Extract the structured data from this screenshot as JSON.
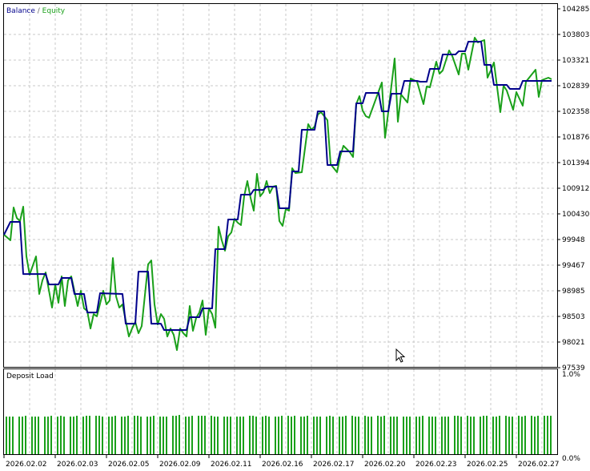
{
  "chart_data": [
    {
      "type": "line",
      "panel": "balance-equity",
      "legend": [
        {
          "name": "Balance",
          "color": "#00008b"
        },
        {
          "name": "Equity",
          "color": "#1aa01a"
        }
      ],
      "legend_separator": " / ",
      "legend_placement": "top-left",
      "grid": true,
      "ylim": [
        97539,
        104285
      ],
      "y_ticks": [
        "104285",
        "103803",
        "103321",
        "102839",
        "102358",
        "101876",
        "101394",
        "100912",
        "100430",
        "99948",
        "99467",
        "98985",
        "98503",
        "98021",
        "97539"
      ],
      "x_ticks": [
        "2026.02.02",
        "2026.02.03",
        "2026.02.05",
        "2026.02.09",
        "2026.02.11",
        "2026.02.16",
        "2026.02.17",
        "2026.02.20",
        "2026.02.23",
        "2026.02.25",
        "2026.02.27"
      ],
      "x_range_index": [
        0,
        171
      ],
      "series": [
        {
          "name": "Balance",
          "color": "#00008b",
          "points": [
            [
              0,
              100038
            ],
            [
              2,
              100279
            ],
            [
              5,
              100279
            ],
            [
              6,
              99300
            ],
            [
              13,
              99300
            ],
            [
              14,
              99104
            ],
            [
              17,
              99104
            ],
            [
              18,
              99225
            ],
            [
              21,
              99225
            ],
            [
              22,
              98924
            ],
            [
              25,
              98924
            ],
            [
              26,
              98577
            ],
            [
              29,
              98577
            ],
            [
              30,
              98939
            ],
            [
              37,
              98924
            ],
            [
              38,
              98366
            ],
            [
              41,
              98366
            ],
            [
              42,
              99345
            ],
            [
              45,
              99345
            ],
            [
              46,
              98366
            ],
            [
              49,
              98366
            ],
            [
              50,
              98246
            ],
            [
              57,
              98246
            ],
            [
              58,
              98487
            ],
            [
              61,
              98487
            ],
            [
              62,
              98653
            ],
            [
              65,
              98653
            ],
            [
              66,
              99767
            ],
            [
              69,
              99767
            ],
            [
              70,
              100324
            ],
            [
              73,
              100324
            ],
            [
              74,
              100791
            ],
            [
              77,
              100791
            ],
            [
              78,
              100881
            ],
            [
              81,
              100881
            ],
            [
              82,
              100942
            ],
            [
              85,
              100942
            ],
            [
              86,
              100535
            ],
            [
              89,
              100535
            ],
            [
              90,
              101228
            ],
            [
              92,
              101228
            ],
            [
              93,
              102011
            ],
            [
              97,
              102011
            ],
            [
              98,
              102357
            ],
            [
              100,
              102357
            ],
            [
              101,
              101348
            ],
            [
              104,
              101348
            ],
            [
              105,
              101604
            ],
            [
              109,
              101604
            ],
            [
              110,
              102508
            ],
            [
              112,
              102508
            ],
            [
              113,
              102704
            ],
            [
              117,
              102704
            ],
            [
              118,
              102357
            ],
            [
              120,
              102357
            ],
            [
              121,
              102689
            ],
            [
              124,
              102689
            ],
            [
              125,
              102930
            ],
            [
              129,
              102930
            ],
            [
              130,
              102915
            ],
            [
              132,
              102915
            ],
            [
              133,
              103155
            ],
            [
              136,
              103155
            ],
            [
              137,
              103427
            ],
            [
              141,
              103427
            ],
            [
              142,
              103487
            ],
            [
              144,
              103487
            ],
            [
              145,
              103668
            ],
            [
              149,
              103668
            ],
            [
              150,
              103231
            ],
            [
              152,
              103231
            ],
            [
              153,
              102854
            ],
            [
              157,
              102854
            ],
            [
              158,
              102779
            ],
            [
              161,
              102779
            ],
            [
              162,
              102930
            ],
            [
              171,
              102930
            ]
          ]
        },
        {
          "name": "Equity",
          "color": "#1aa01a",
          "points": [
            [
              0,
              100038
            ],
            [
              2,
              99933
            ],
            [
              3,
              100550
            ],
            [
              4,
              100354
            ],
            [
              5,
              100294
            ],
            [
              6,
              100565
            ],
            [
              7,
              99631
            ],
            [
              8,
              99285
            ],
            [
              10,
              99631
            ],
            [
              11,
              98924
            ],
            [
              12,
              99180
            ],
            [
              13,
              99330
            ],
            [
              15,
              98668
            ],
            [
              16,
              99104
            ],
            [
              17,
              98758
            ],
            [
              18,
              99255
            ],
            [
              19,
              98698
            ],
            [
              20,
              99180
            ],
            [
              21,
              99255
            ],
            [
              23,
              98698
            ],
            [
              24,
              98984
            ],
            [
              25,
              98653
            ],
            [
              26,
              98607
            ],
            [
              27,
              98276
            ],
            [
              28,
              98547
            ],
            [
              29,
              98502
            ],
            [
              31,
              98984
            ],
            [
              32,
              98728
            ],
            [
              33,
              98803
            ],
            [
              34,
              99601
            ],
            [
              35,
              98878
            ],
            [
              36,
              98668
            ],
            [
              37,
              98728
            ],
            [
              39,
              98125
            ],
            [
              40,
              98276
            ],
            [
              41,
              98397
            ],
            [
              42,
              98186
            ],
            [
              43,
              98321
            ],
            [
              45,
              99481
            ],
            [
              46,
              99556
            ],
            [
              47,
              98728
            ],
            [
              48,
              98351
            ],
            [
              49,
              98547
            ],
            [
              50,
              98457
            ],
            [
              51,
              98125
            ],
            [
              52,
              98276
            ],
            [
              53,
              98156
            ],
            [
              54,
              97869
            ],
            [
              55,
              98276
            ],
            [
              56,
              98186
            ],
            [
              57,
              98125
            ],
            [
              58,
              98698
            ],
            [
              59,
              98231
            ],
            [
              60,
              98472
            ],
            [
              61,
              98577
            ],
            [
              62,
              98803
            ],
            [
              63,
              98156
            ],
            [
              64,
              98653
            ],
            [
              65,
              98547
            ],
            [
              66,
              98291
            ],
            [
              67,
              100189
            ],
            [
              68,
              99933
            ],
            [
              69,
              99737
            ],
            [
              70,
              100008
            ],
            [
              71,
              100083
            ],
            [
              72,
              100339
            ],
            [
              73,
              100264
            ],
            [
              74,
              100219
            ],
            [
              75,
              100761
            ],
            [
              76,
              101047
            ],
            [
              77,
              100731
            ],
            [
              78,
              100490
            ],
            [
              79,
              101183
            ],
            [
              80,
              100761
            ],
            [
              81,
              100836
            ],
            [
              82,
              101047
            ],
            [
              83,
              100821
            ],
            [
              84,
              100942
            ],
            [
              85,
              100957
            ],
            [
              86,
              100294
            ],
            [
              87,
              100204
            ],
            [
              88,
              100520
            ],
            [
              89,
              100490
            ],
            [
              90,
              101288
            ],
            [
              91,
              101198
            ],
            [
              93,
              101213
            ],
            [
              95,
              102116
            ],
            [
              96,
              102011
            ],
            [
              97,
              102071
            ],
            [
              98,
              102297
            ],
            [
              99,
              102342
            ],
            [
              101,
              102192
            ],
            [
              102,
              101363
            ],
            [
              103,
              101288
            ],
            [
              104,
              101213
            ],
            [
              105,
              101514
            ],
            [
              106,
              101710
            ],
            [
              107,
              101650
            ],
            [
              108,
              101589
            ],
            [
              109,
              101499
            ],
            [
              110,
              102493
            ],
            [
              111,
              102643
            ],
            [
              112,
              102372
            ],
            [
              113,
              102267
            ],
            [
              114,
              102237
            ],
            [
              118,
              102899
            ],
            [
              119,
              101860
            ],
            [
              120,
              102342
            ],
            [
              122,
              103351
            ],
            [
              123,
              102162
            ],
            [
              124,
              102674
            ],
            [
              126,
              102523
            ],
            [
              127,
              102975
            ],
            [
              129,
              102915
            ],
            [
              131,
              102493
            ],
            [
              132,
              102824
            ],
            [
              133,
              102809
            ],
            [
              135,
              103291
            ],
            [
              136,
              103065
            ],
            [
              137,
              103125
            ],
            [
              139,
              103502
            ],
            [
              140,
              103396
            ],
            [
              142,
              103050
            ],
            [
              143,
              103442
            ],
            [
              144,
              103442
            ],
            [
              145,
              103140
            ],
            [
              147,
              103743
            ],
            [
              148,
              103652
            ],
            [
              150,
              103697
            ],
            [
              151,
              102990
            ],
            [
              152,
              103125
            ],
            [
              153,
              103276
            ],
            [
              155,
              102342
            ],
            [
              156,
              102839
            ],
            [
              157,
              102749
            ],
            [
              159,
              102387
            ],
            [
              160,
              102719
            ],
            [
              162,
              102463
            ],
            [
              163,
              102915
            ],
            [
              166,
              103140
            ],
            [
              167,
              102628
            ],
            [
              168,
              102945
            ],
            [
              170,
              102990
            ],
            [
              171,
              102960
            ]
          ]
        }
      ]
    },
    {
      "type": "bar",
      "panel": "deposit-load",
      "title": "Deposit Load",
      "color": "#1aa01a",
      "ylim": [
        0,
        1.0
      ],
      "y_ticks": [
        "1.0%",
        "0.0%"
      ],
      "unit": "%",
      "values": [
        0.46,
        0.46,
        0.46,
        0.46,
        0.46,
        0.47,
        0.46,
        0.46,
        0.46,
        0.46,
        0.46,
        0.47,
        0.46,
        0.47,
        0.46,
        0.46,
        0.46,
        0.47,
        0.46,
        0.47,
        0.47,
        0.47,
        0.47,
        0.46,
        0.46,
        0.46,
        0.47,
        0.46,
        0.46,
        0.47,
        0.47,
        0.47,
        0.46,
        0.46,
        0.46,
        0.47,
        0.46,
        0.46,
        0.46,
        0.47,
        0.47,
        0.48,
        0.46,
        0.46,
        0.47,
        0.47,
        0.47,
        0.47,
        0.47,
        0.46,
        0.46,
        0.46,
        0.46,
        0.46,
        0.46,
        0.46,
        0.46,
        0.47,
        0.47,
        0.46,
        0.46,
        0.47,
        0.46,
        0.46,
        0.46,
        0.47,
        0.47,
        0.46,
        0.47,
        0.46,
        0.46,
        0.47,
        0.46,
        0.46,
        0.46,
        0.46,
        0.47,
        0.46,
        0.46,
        0.46,
        0.47,
        0.47,
        0.46,
        0.46,
        0.47,
        0.46,
        0.46,
        0.47,
        0.46,
        0.47,
        0.46,
        0.46,
        0.46,
        0.46,
        0.46,
        0.46,
        0.46,
        0.46,
        0.47,
        0.46,
        0.46,
        0.46,
        0.46,
        0.46,
        0.46,
        0.47,
        0.47,
        0.46,
        0.47,
        0.46,
        0.46,
        0.46,
        0.47,
        0.47,
        0.46,
        0.46,
        0.47,
        0.47,
        0.46,
        0.46,
        0.47,
        0.46,
        0.47,
        0.47,
        0.46,
        0.47,
        0.47,
        0.47,
        0.47
      ]
    }
  ]
}
